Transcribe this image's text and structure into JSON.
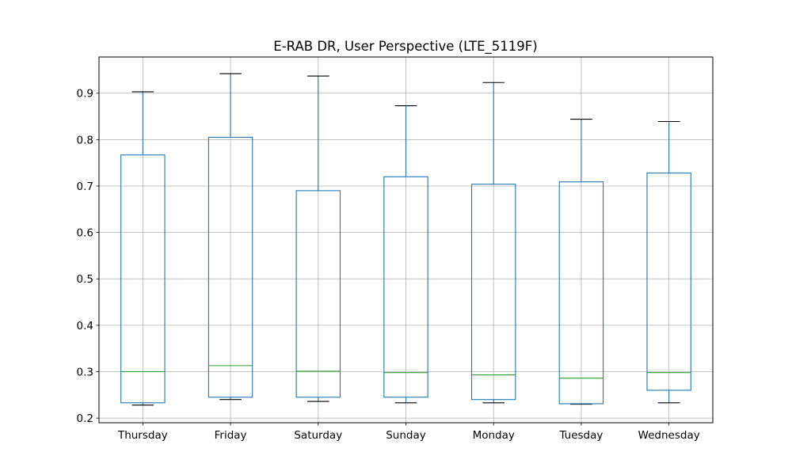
{
  "chart_data": {
    "type": "box",
    "title": "E-RAB DR, User Perspective (LTE_5119F)",
    "xlabel": "",
    "ylabel": "",
    "categories": [
      "Thursday",
      "Friday",
      "Saturday",
      "Sunday",
      "Monday",
      "Tuesday",
      "Wednesday"
    ],
    "boxes": [
      {
        "label": "Thursday",
        "whisker_low": 0.228,
        "q1": 0.233,
        "median": 0.3,
        "q3": 0.767,
        "whisker_high": 0.903
      },
      {
        "label": "Friday",
        "whisker_low": 0.24,
        "q1": 0.245,
        "median": 0.313,
        "q3": 0.805,
        "whisker_high": 0.942
      },
      {
        "label": "Saturday",
        "whisker_low": 0.236,
        "q1": 0.245,
        "median": 0.301,
        "q3": 0.69,
        "whisker_high": 0.937
      },
      {
        "label": "Sunday",
        "whisker_low": 0.233,
        "q1": 0.245,
        "median": 0.298,
        "q3": 0.72,
        "whisker_high": 0.873
      },
      {
        "label": "Monday",
        "whisker_low": 0.233,
        "q1": 0.24,
        "median": 0.293,
        "q3": 0.704,
        "whisker_high": 0.923
      },
      {
        "label": "Tuesday",
        "whisker_low": 0.23,
        "q1": 0.231,
        "median": 0.286,
        "q3": 0.709,
        "whisker_high": 0.844
      },
      {
        "label": "Wednesday",
        "whisker_low": 0.233,
        "q1": 0.26,
        "median": 0.298,
        "q3": 0.728,
        "whisker_high": 0.839
      }
    ],
    "yticks": [
      "0.2",
      "0.3",
      "0.4",
      "0.5",
      "0.6",
      "0.7",
      "0.8",
      "0.9"
    ],
    "ylim": [
      0.19,
      0.978
    ],
    "grid": true,
    "colors": {
      "box": "#1f77b4",
      "median": "#2ca02c",
      "whisker": "#1f77b4",
      "cap": "#000000",
      "grid": "#b0b0b0"
    }
  }
}
